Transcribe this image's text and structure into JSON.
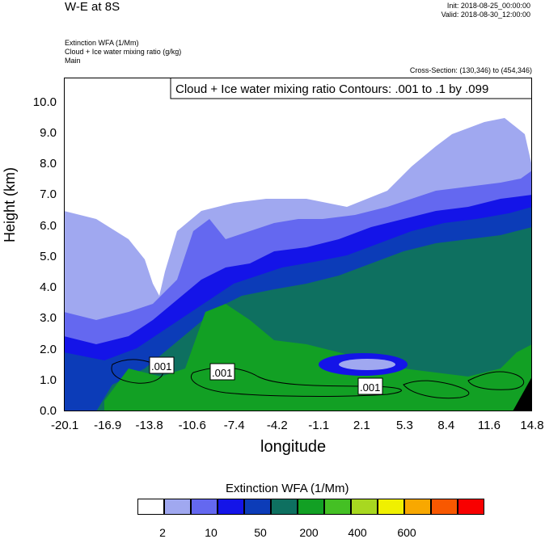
{
  "header": {
    "title": "W-E at 8S",
    "init": "Init: 2018-08-25_00:00:00",
    "valid": "Valid: 2018-08-30_12:00:00",
    "fields": [
      "Extinction WFA   (1/Mm)",
      "Cloud + Ice water mixing ratio   (g/kg)",
      "Main"
    ],
    "cross_section": "Cross-Section: (130,346) to (454,346)"
  },
  "chart_data": {
    "type": "heatmap",
    "title": "W-E at 8S",
    "xlabel": "longitude",
    "ylabel": "Height (km)",
    "xlim": [
      -20.1,
      14.8
    ],
    "ylim": [
      0.0,
      10.8
    ],
    "xticks": [
      "-20.1",
      "-16.9",
      "-13.8",
      "-10.6",
      "-7.4",
      "-4.2",
      "-1.1",
      "2.1",
      "5.3",
      "8.4",
      "11.6",
      "14.8"
    ],
    "yticks": [
      "0.0",
      "1.0",
      "2.0",
      "3.0",
      "4.0",
      "5.0",
      "6.0",
      "7.0",
      "8.0",
      "9.0",
      "10.0"
    ],
    "contour_annotation": "Cloud + Ice water mixing ratio Contours: .001 to .1 by .099",
    "contour_labels": [
      ".001",
      ".001",
      ".001"
    ],
    "colorbar": {
      "title": "Extinction WFA  (1/Mm)",
      "labels": [
        "2",
        "10",
        "50",
        "200",
        "400",
        "600"
      ],
      "colors": [
        "#ffffff",
        "#a0a8f0",
        "#6468f0",
        "#1414e8",
        "#0c3cb8",
        "#0e7060",
        "#12a024",
        "#44c024",
        "#a8d820",
        "#f0f000",
        "#f8a800",
        "#f85800",
        "#f80000"
      ]
    }
  }
}
